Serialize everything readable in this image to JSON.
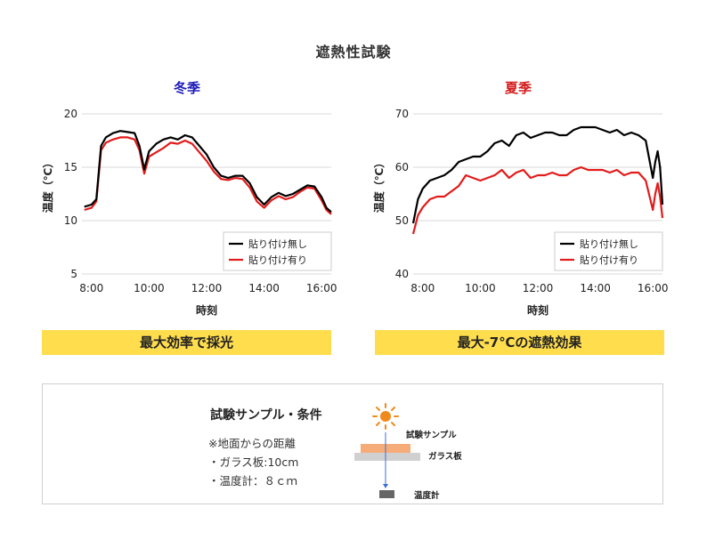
{
  "page": {
    "title": "遮熱性試験"
  },
  "charts": {
    "winter": {
      "season_label": "冬季",
      "season_color": "#1a1ab8",
      "xlabel": "時刻",
      "ylabel": "温度（℃）",
      "banner": "最大効率で採光"
    },
    "summer": {
      "season_label": "夏季",
      "season_color": "#d41a1a",
      "xlabel": "時刻",
      "ylabel": "温度（℃）",
      "banner": "最大-7℃の遮熱効果"
    }
  },
  "legend": {
    "without_film": "貼り付け無し",
    "with_film": "貼り付け有り",
    "without_color": "#000000",
    "with_color": "#e21b1b"
  },
  "conditions": {
    "title": "試験サンプル・条件",
    "note_heading": "※地面からの距離",
    "glass": "・ガラス板:10cm",
    "thermometer": "・温度計：８ｃｍ",
    "diagram_sample": "試験サンプル",
    "diagram_glass": "ガラス板",
    "diagram_thermometer": "温度計"
  },
  "chart_data": [
    {
      "type": "line",
      "title": "冬季",
      "xlabel": "時刻",
      "ylabel": "温度（℃）",
      "xlim": [
        "7:40",
        "16:20"
      ],
      "ylim": [
        5,
        20
      ],
      "yticks": [
        5,
        10,
        15,
        20
      ],
      "xticks": [
        "8:00",
        "10:00",
        "12:00",
        "14:00",
        "16:00"
      ],
      "grid": "horizontal",
      "legend_position": "bottom-right",
      "x": [
        "7:45",
        "8:00",
        "8:10",
        "8:20",
        "8:30",
        "8:45",
        "9:00",
        "9:15",
        "9:30",
        "9:40",
        "9:50",
        "10:00",
        "10:15",
        "10:30",
        "10:45",
        "11:00",
        "11:15",
        "11:30",
        "11:45",
        "12:00",
        "12:15",
        "12:30",
        "12:45",
        "13:00",
        "13:15",
        "13:30",
        "13:45",
        "14:00",
        "14:15",
        "14:30",
        "14:45",
        "15:00",
        "15:15",
        "15:30",
        "15:45",
        "16:00",
        "16:10",
        "16:20"
      ],
      "series": [
        {
          "name": "貼り付け無し",
          "color": "#000000",
          "values": [
            11.3,
            11.5,
            12.0,
            17.0,
            17.8,
            18.2,
            18.4,
            18.3,
            18.2,
            17.0,
            14.8,
            16.5,
            17.2,
            17.6,
            17.8,
            17.6,
            18.0,
            17.8,
            17.0,
            16.2,
            15.0,
            14.2,
            14.0,
            14.2,
            14.2,
            13.5,
            12.2,
            11.5,
            12.2,
            12.6,
            12.3,
            12.5,
            12.9,
            13.3,
            13.2,
            12.2,
            11.2,
            10.8
          ]
        },
        {
          "name": "貼り付け有り",
          "color": "#e21b1b",
          "values": [
            11.0,
            11.2,
            11.8,
            16.6,
            17.3,
            17.6,
            17.8,
            17.8,
            17.6,
            16.6,
            14.4,
            16.0,
            16.4,
            16.8,
            17.3,
            17.2,
            17.5,
            17.2,
            16.4,
            15.6,
            14.6,
            13.9,
            13.8,
            14.0,
            13.9,
            13.1,
            11.8,
            11.2,
            11.9,
            12.3,
            12.0,
            12.2,
            12.7,
            13.1,
            13.0,
            11.9,
            11.0,
            10.6
          ]
        }
      ]
    },
    {
      "type": "line",
      "title": "夏季",
      "xlabel": "時刻",
      "ylabel": "温度（℃）",
      "xlim": [
        "7:40",
        "16:20"
      ],
      "ylim": [
        40,
        70
      ],
      "yticks": [
        40,
        50,
        60,
        70
      ],
      "xticks": [
        "8:00",
        "10:00",
        "12:00",
        "14:00",
        "16:00"
      ],
      "grid": "horizontal",
      "legend_position": "bottom-right",
      "x": [
        "7:40",
        "7:50",
        "8:00",
        "8:15",
        "8:30",
        "8:45",
        "9:00",
        "9:15",
        "9:30",
        "9:45",
        "10:00",
        "10:15",
        "10:30",
        "10:45",
        "11:00",
        "11:15",
        "11:30",
        "11:45",
        "12:00",
        "12:15",
        "12:30",
        "12:45",
        "13:00",
        "13:15",
        "13:30",
        "13:45",
        "14:00",
        "14:15",
        "14:30",
        "14:45",
        "15:00",
        "15:15",
        "15:30",
        "15:45",
        "16:00",
        "16:05",
        "16:10",
        "16:15",
        "16:20"
      ],
      "series": [
        {
          "name": "貼り付け無し",
          "color": "#000000",
          "values": [
            49.5,
            54.0,
            56.0,
            57.5,
            58.0,
            58.5,
            59.5,
            61.0,
            61.5,
            62.0,
            62.0,
            63.0,
            64.5,
            65.0,
            64.0,
            66.0,
            66.5,
            65.5,
            66.0,
            66.5,
            66.5,
            66.0,
            66.0,
            67.0,
            67.5,
            67.5,
            67.5,
            67.0,
            66.5,
            67.0,
            66.0,
            66.5,
            66.0,
            65.0,
            58.0,
            61.0,
            63.0,
            60.0,
            53.0
          ]
        },
        {
          "name": "貼り付け有り",
          "color": "#e21b1b",
          "values": [
            47.5,
            51.0,
            52.5,
            54.0,
            54.5,
            54.5,
            55.5,
            56.5,
            58.5,
            58.0,
            57.5,
            58.0,
            58.5,
            59.5,
            58.0,
            59.0,
            59.5,
            58.0,
            58.5,
            58.5,
            59.0,
            58.5,
            58.5,
            59.5,
            60.0,
            59.5,
            59.5,
            59.5,
            59.0,
            59.5,
            58.5,
            59.0,
            59.0,
            57.5,
            52.0,
            55.0,
            57.0,
            54.5,
            50.5
          ]
        }
      ]
    }
  ]
}
